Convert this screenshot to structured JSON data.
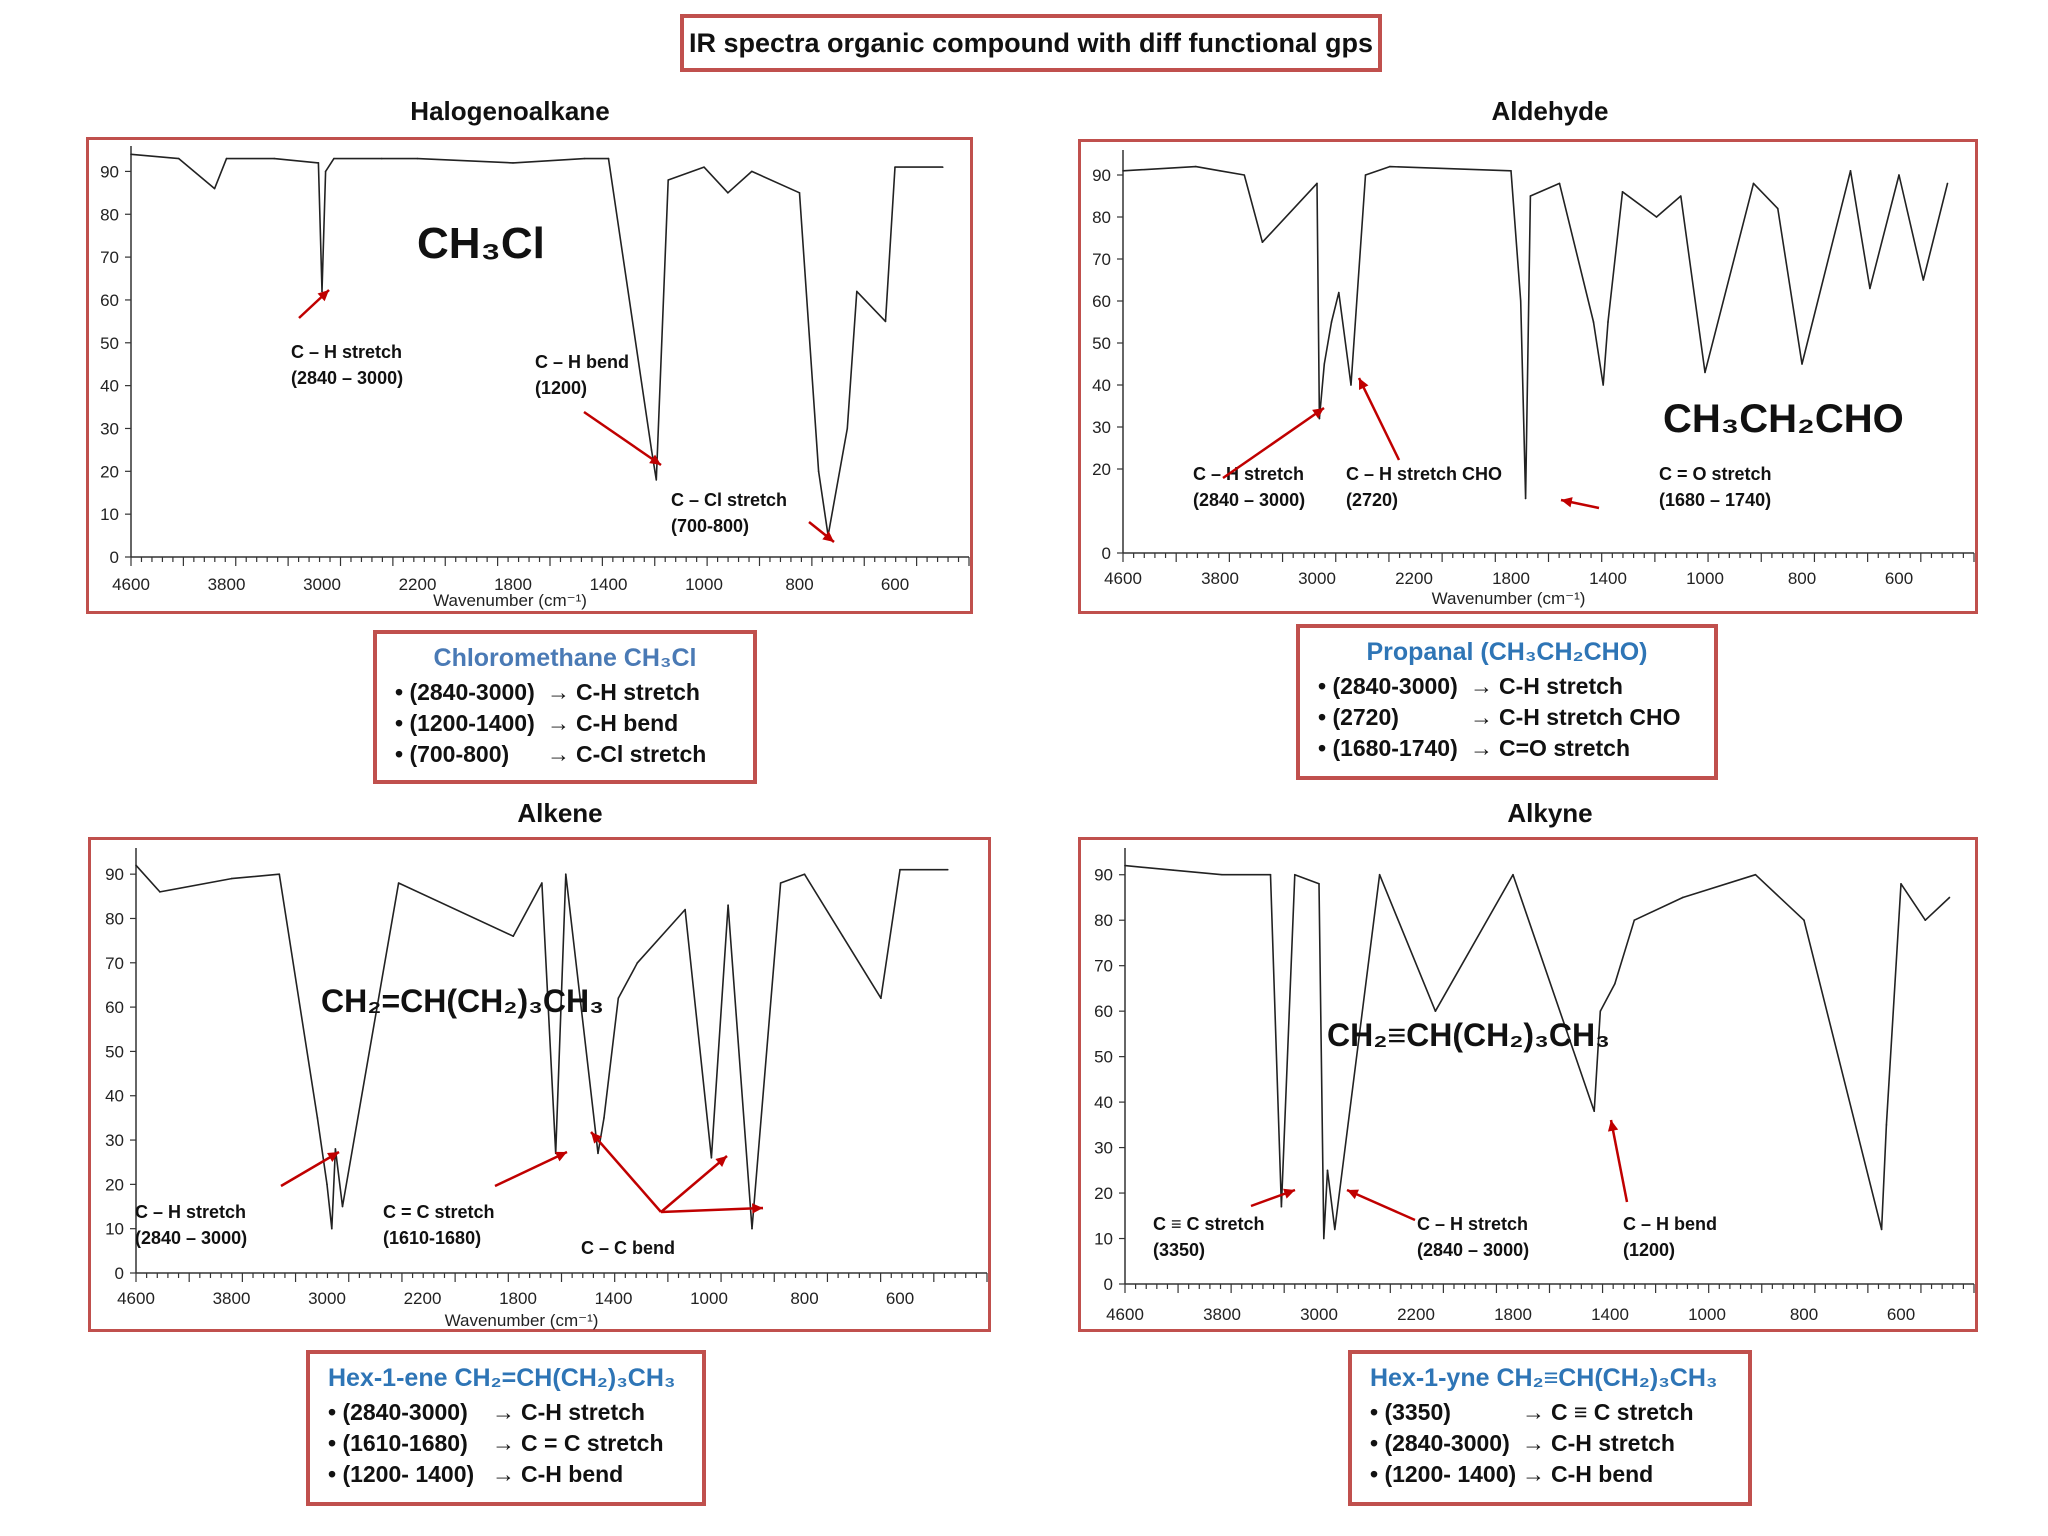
{
  "title": "IR spectra organic compound with diff functional gps",
  "colors": {
    "frame": "#c0504d",
    "arrow": "#c00000",
    "summary_title": "#2e75b6",
    "trace": "#222222"
  },
  "panels": [
    {
      "heading": "Halogenoalkane",
      "molecule": "CH₃Cl",
      "xlabel": "Wavenumber  (cm⁻¹)",
      "x_ticks": [
        "4600",
        "3800",
        "3000",
        "2200",
        "1800",
        "1400",
        "1000",
        "800",
        "600"
      ],
      "y_ticks": [
        "0",
        "10",
        "20",
        "30",
        "40",
        "50",
        "60",
        "70",
        "80",
        "90"
      ],
      "annotations": [
        {
          "label": "C – H stretch",
          "range": "(2840 – 3000)"
        },
        {
          "label": "C – H bend",
          "range": "(1200)"
        },
        {
          "label": "C – Cl stretch",
          "range": "(700-800)"
        }
      ],
      "summary": {
        "title": "Chloromethane CH₃Cl",
        "rows": [
          {
            "range": "• (2840-3000)",
            "arrow": "→",
            "assignment": "C-H stretch"
          },
          {
            "range": "• (1200-1400)",
            "arrow": "→",
            "assignment": "C-H bend"
          },
          {
            "range": "•  (700-800)",
            "arrow": "→",
            "assignment": "C-Cl  stretch"
          }
        ]
      }
    },
    {
      "heading": "Aldehyde",
      "molecule": "CH₃CH₂CHO",
      "xlabel": "Wavenumber  (cm⁻¹)",
      "x_ticks": [
        "4600",
        "3800",
        "3000",
        "2200",
        "1800",
        "1400",
        "1000",
        "800",
        "600"
      ],
      "y_ticks": [
        "0",
        "20",
        "30",
        "40",
        "50",
        "60",
        "70",
        "80",
        "90"
      ],
      "annotations": [
        {
          "label": "C – H stretch",
          "range": "(2840 – 3000)"
        },
        {
          "label": "C – H stretch CHO",
          "range": "(2720)"
        },
        {
          "label": "C = O stretch",
          "range": "(1680 – 1740)"
        }
      ],
      "summary": {
        "title": "Propanal (CH₃CH₂CHO)",
        "rows": [
          {
            "range": "• (2840-3000)",
            "arrow": "→",
            "assignment": "C-H stretch"
          },
          {
            "range": "• (2720)",
            "arrow": "→",
            "assignment": "C-H  stretch CHO"
          },
          {
            "range": "• (1680-1740)",
            "arrow": "→",
            "assignment": "C=O stretch"
          }
        ]
      }
    },
    {
      "heading": "Alkene",
      "molecule": "CH₂=CH(CH₂)₃CH₃",
      "xlabel": "Wavenumber  (cm⁻¹)",
      "x_ticks": [
        "4600",
        "3800",
        "3000",
        "2200",
        "1800",
        "1400",
        "1000",
        "800",
        "600"
      ],
      "y_ticks": [
        "0",
        "10",
        "20",
        "30",
        "40",
        "50",
        "60",
        "70",
        "80",
        "90"
      ],
      "annotations": [
        {
          "label": "C – H stretch",
          "range": "(2840 – 3000)"
        },
        {
          "label": "C = C stretch",
          "range": "(1610-1680)"
        },
        {
          "label": "C – C bend",
          "range": ""
        }
      ],
      "summary": {
        "title": "Hex-1-ene CH₂=CH(CH₂)₃CH₃",
        "rows": [
          {
            "range": "• (2840-3000)",
            "arrow": "→",
            "assignment": "C-H stretch"
          },
          {
            "range": "• (1610-1680)",
            "arrow": "→",
            "assignment": "C = C stretch"
          },
          {
            "range": "• (1200- 1400)",
            "arrow": "→",
            "assignment": "C-H bend"
          }
        ]
      }
    },
    {
      "heading": "Alkyne",
      "molecule": "CH₂≡CH(CH₂)₃CH₃",
      "xlabel": "",
      "x_ticks": [
        "4600",
        "3800",
        "3000",
        "2200",
        "1800",
        "1400",
        "1000",
        "800",
        "600"
      ],
      "y_ticks": [
        "0",
        "10",
        "20",
        "30",
        "40",
        "50",
        "60",
        "70",
        "80",
        "90"
      ],
      "annotations": [
        {
          "label": "C ≡ C stretch",
          "range": "(3350)"
        },
        {
          "label": "C – H stretch",
          "range": "(2840 – 3000)"
        },
        {
          "label": "C – H bend",
          "range": "(1200)"
        }
      ],
      "summary": {
        "title": "Hex-1-yne CH₂≡CH(CH₂)₃CH₃",
        "rows": [
          {
            "range": "• (3350)",
            "arrow": "→",
            "assignment": "C ≡  C stretch"
          },
          {
            "range": "• (2840-3000)",
            "arrow": "→",
            "assignment": "C-H stretch"
          },
          {
            "range": "• (1200- 1400)",
            "arrow": "→",
            "assignment": "C-H bend"
          }
        ]
      }
    }
  ],
  "chart_data": [
    {
      "type": "line",
      "title": "Halogenoalkane",
      "xlabel": "Wavenumber  (cm⁻¹)",
      "ylabel": "",
      "x": [
        "4600",
        "4200",
        "3900",
        "3800",
        "3400",
        "3030",
        "3000",
        "2970",
        "2900",
        "2500",
        "2200",
        "1800",
        "1500",
        "1400",
        "1220",
        "1200",
        "1150",
        "1000",
        "950",
        "900",
        "800",
        "760",
        "740",
        "700",
        "680",
        "620",
        "600",
        "500"
      ],
      "y": [
        94,
        93,
        86,
        93,
        93,
        92,
        62,
        90,
        93,
        93,
        93,
        92,
        93,
        93,
        25,
        18,
        88,
        91,
        85,
        90,
        85,
        20,
        5,
        30,
        62,
        55,
        91,
        91
      ],
      "ylim": [
        0,
        95
      ],
      "xlim_labels": [
        "4600",
        "600"
      ]
    },
    {
      "type": "line",
      "title": "Aldehyde",
      "xlabel": "Wavenumber  (cm⁻¹)",
      "ylabel": "",
      "x": [
        "4600",
        "4000",
        "3800",
        "3600",
        "3450",
        "3000",
        "2980",
        "2940",
        "2880",
        "2820",
        "2720",
        "2600",
        "2400",
        "1800",
        "1760",
        "1740",
        "1720",
        "1600",
        "1460",
        "1420",
        "1400",
        "1340",
        "1200",
        "1100",
        "1000",
        "900",
        "850",
        "800",
        "700",
        "660",
        "600",
        "550",
        "500"
      ],
      "y": [
        91,
        92,
        91,
        90,
        74,
        88,
        32,
        45,
        55,
        62,
        40,
        90,
        92,
        91,
        60,
        13,
        85,
        88,
        55,
        40,
        55,
        86,
        80,
        85,
        43,
        88,
        82,
        45,
        91,
        63,
        90,
        65,
        88
      ],
      "ylim": [
        0,
        95
      ],
      "xlim_labels": [
        "4600",
        "600"
      ]
    },
    {
      "type": "line",
      "title": "Alkene",
      "xlabel": "Wavenumber  (cm⁻¹)",
      "ylabel": "",
      "x": [
        "4600",
        "4400",
        "3800",
        "3400",
        "3080",
        "3000",
        "2960",
        "2930",
        "2870",
        "2400",
        "1820",
        "1700",
        "1642",
        "1600",
        "1465",
        "1440",
        "1380",
        "1300",
        "1100",
        "995",
        "960",
        "910",
        "850",
        "800",
        "720",
        "640",
        "600",
        "500"
      ],
      "y": [
        92,
        86,
        89,
        90,
        35,
        20,
        10,
        28,
        15,
        88,
        76,
        88,
        27,
        90,
        27,
        35,
        62,
        70,
        82,
        26,
        83,
        10,
        88,
        90,
        76,
        62,
        91,
        91
      ],
      "ylim": [
        0,
        95
      ],
      "xlim_labels": [
        "4600",
        "600"
      ]
    },
    {
      "type": "line",
      "title": "Alkyne",
      "xlabel": "",
      "ylabel": "",
      "x": [
        "4600",
        "4200",
        "3800",
        "3400",
        "3310",
        "3200",
        "3000",
        "2960",
        "2930",
        "2870",
        "2500",
        "2120",
        "1800",
        "1465",
        "1440",
        "1380",
        "1300",
        "1100",
        "900",
        "800",
        "640",
        "630",
        "600",
        "550",
        "500"
      ],
      "y": [
        92,
        91,
        90,
        90,
        17,
        90,
        88,
        10,
        25,
        12,
        90,
        60,
        90,
        38,
        60,
        66,
        80,
        85,
        90,
        80,
        12,
        35,
        88,
        80,
        85
      ],
      "ylim": [
        0,
        95
      ],
      "xlim_labels": [
        "4600",
        "600"
      ]
    }
  ]
}
